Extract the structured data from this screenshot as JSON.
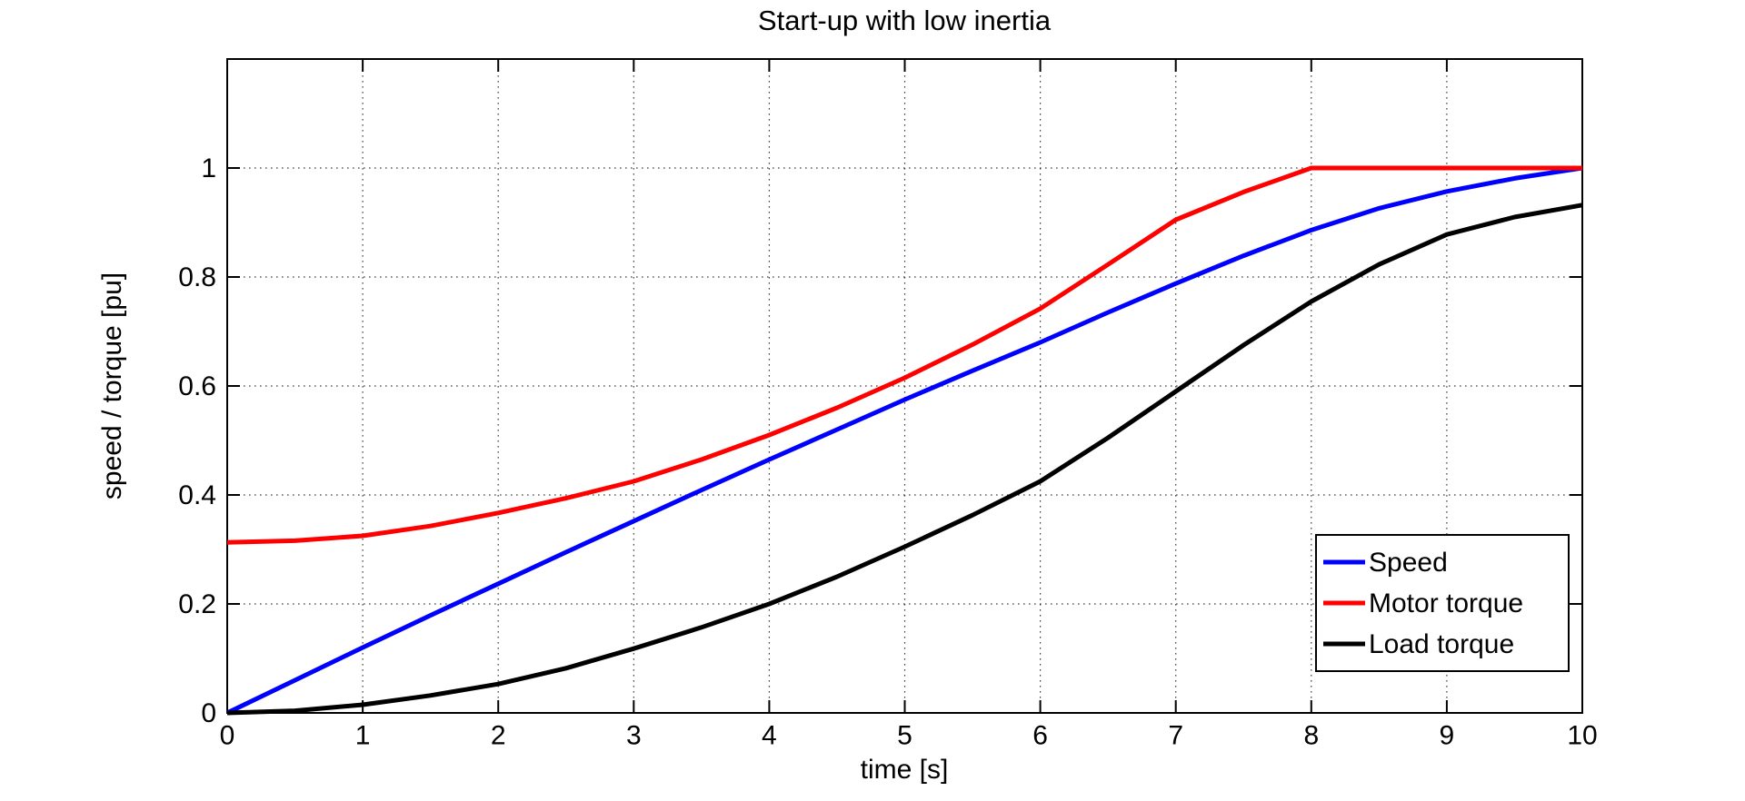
{
  "figure": {
    "background_color": "#FFFFFF",
    "axis_color": "#000000",
    "grid_on": true,
    "grid_style": "dotted"
  },
  "chart_data": {
    "type": "line",
    "title": "Start-up with low inertia",
    "xlabel": "time [s]",
    "ylabel": "speed / torque [pu]",
    "xlim": [
      0,
      10
    ],
    "ylim": [
      0,
      1.2
    ],
    "xticks": [
      0,
      1,
      2,
      3,
      4,
      5,
      6,
      7,
      8,
      9,
      10
    ],
    "xtick_labels": [
      "0",
      "1",
      "2",
      "3",
      "4",
      "5",
      "6",
      "7",
      "8",
      "9",
      "10"
    ],
    "yticks": [
      0,
      0.2,
      0.4,
      0.6,
      0.8,
      1
    ],
    "ytick_labels": [
      "0",
      "0.2",
      "0.4",
      "0.6",
      "0.8",
      "1"
    ],
    "grid": true,
    "legend": {
      "position": "lower-right-inside",
      "entries": [
        "Speed",
        "Motor torque",
        "Load torque"
      ]
    },
    "series": [
      {
        "name": "Speed",
        "color": "#0000FF",
        "x": [
          0,
          0.5,
          1,
          1.5,
          2,
          2.5,
          3,
          3.5,
          4,
          4.5,
          5,
          5.5,
          6,
          6.5,
          7,
          7.5,
          8,
          8.5,
          9,
          9.5,
          10
        ],
        "y": [
          0,
          0.06,
          0.12,
          0.179,
          0.237,
          0.295,
          0.352,
          0.409,
          0.465,
          0.52,
          0.575,
          0.628,
          0.68,
          0.735,
          0.788,
          0.839,
          0.886,
          0.926,
          0.957,
          0.981,
          1.0
        ]
      },
      {
        "name": "Motor torque",
        "color": "#FF0000",
        "x": [
          0,
          0.5,
          1,
          1.5,
          2,
          2.5,
          3,
          3.5,
          4,
          4.5,
          5,
          5.5,
          6,
          6.5,
          7,
          7.5,
          8,
          8.5,
          9,
          9.5,
          10
        ],
        "y": [
          0.313,
          0.316,
          0.325,
          0.343,
          0.367,
          0.394,
          0.425,
          0.465,
          0.51,
          0.56,
          0.615,
          0.676,
          0.742,
          0.823,
          0.905,
          0.956,
          1.0,
          1.0,
          1.0,
          1.0,
          1.0
        ]
      },
      {
        "name": "Load torque",
        "color": "#000000",
        "x": [
          0,
          0.5,
          1,
          1.5,
          2,
          2.5,
          3,
          3.5,
          4,
          4.5,
          5,
          5.5,
          6,
          6.5,
          7,
          7.5,
          8,
          8.5,
          9,
          9.5,
          10
        ],
        "y": [
          0,
          0.004,
          0.015,
          0.032,
          0.053,
          0.082,
          0.118,
          0.157,
          0.2,
          0.25,
          0.305,
          0.363,
          0.425,
          0.505,
          0.59,
          0.675,
          0.755,
          0.823,
          0.878,
          0.91,
          0.932
        ]
      }
    ]
  }
}
